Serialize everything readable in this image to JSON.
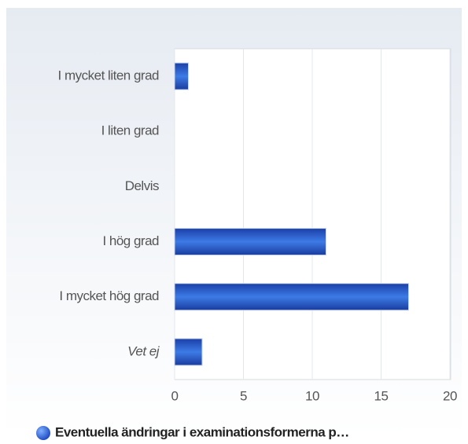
{
  "chart_data": {
    "type": "bar",
    "orientation": "horizontal",
    "categories": [
      "I mycket liten grad",
      "I liten grad",
      "Delvis",
      "I hög grad",
      "I mycket hög grad",
      "Vet ej"
    ],
    "series": [
      {
        "name": "Eventuella ändringar i examinationsformerna p…",
        "color": "#2a5fd0",
        "values": [
          1,
          0,
          0,
          11,
          17,
          2
        ]
      }
    ],
    "xlim": [
      0,
      20
    ],
    "xticks": [
      0,
      5,
      10,
      15,
      20
    ],
    "grid": true,
    "legend": "bottom"
  }
}
